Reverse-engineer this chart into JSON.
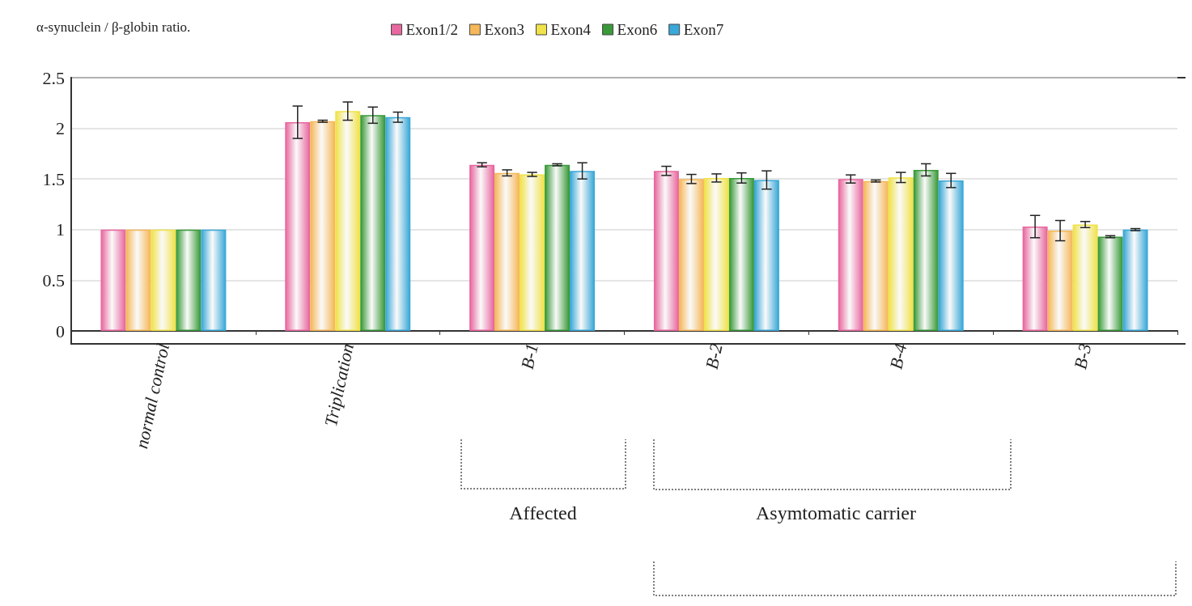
{
  "chart_data": {
    "type": "bar",
    "title": "α-synuclein / β-globin ratio.",
    "categories": [
      "normal control",
      "Triplication",
      "B-1",
      "B-2",
      "B-4",
      "B-3"
    ],
    "series": [
      {
        "name": "Exon1/2",
        "color": "#e8689f",
        "values": [
          1,
          2.06,
          1.64,
          1.58,
          1.5,
          1.03
        ],
        "errors": [
          null,
          0.16,
          0.02,
          0.045,
          0.04,
          0.11
        ]
      },
      {
        "name": "Exon3",
        "color": "#f5b85a",
        "values": [
          1,
          2.07,
          1.56,
          1.5,
          1.48,
          0.99
        ],
        "errors": [
          null,
          0.01,
          0.03,
          0.045,
          0.01,
          0.1
        ]
      },
      {
        "name": "Exon4",
        "color": "#f0e24a",
        "values": [
          1,
          2.17,
          1.545,
          1.51,
          1.515,
          1.05
        ],
        "errors": [
          null,
          0.09,
          0.02,
          0.04,
          0.05,
          0.03
        ]
      },
      {
        "name": "Exon6",
        "color": "#3a9a3a",
        "values": [
          1,
          2.13,
          1.64,
          1.51,
          1.59,
          0.93
        ],
        "errors": [
          null,
          0.08,
          0.01,
          0.05,
          0.06,
          0.01
        ]
      },
      {
        "name": "Exon7",
        "color": "#3aa8d8",
        "values": [
          1,
          2.11,
          1.58,
          1.49,
          1.485,
          1
        ],
        "errors": [
          null,
          0.05,
          0.08,
          0.09,
          0.07,
          0.01
        ]
      }
    ],
    "ylim": [
      0,
      2.5
    ],
    "yticks": [
      0,
      0.5,
      1,
      1.5,
      2,
      2.5
    ],
    "grid": "y",
    "legend": "top",
    "annotations": [
      "Affected",
      "Asymtomatic carrier"
    ]
  }
}
